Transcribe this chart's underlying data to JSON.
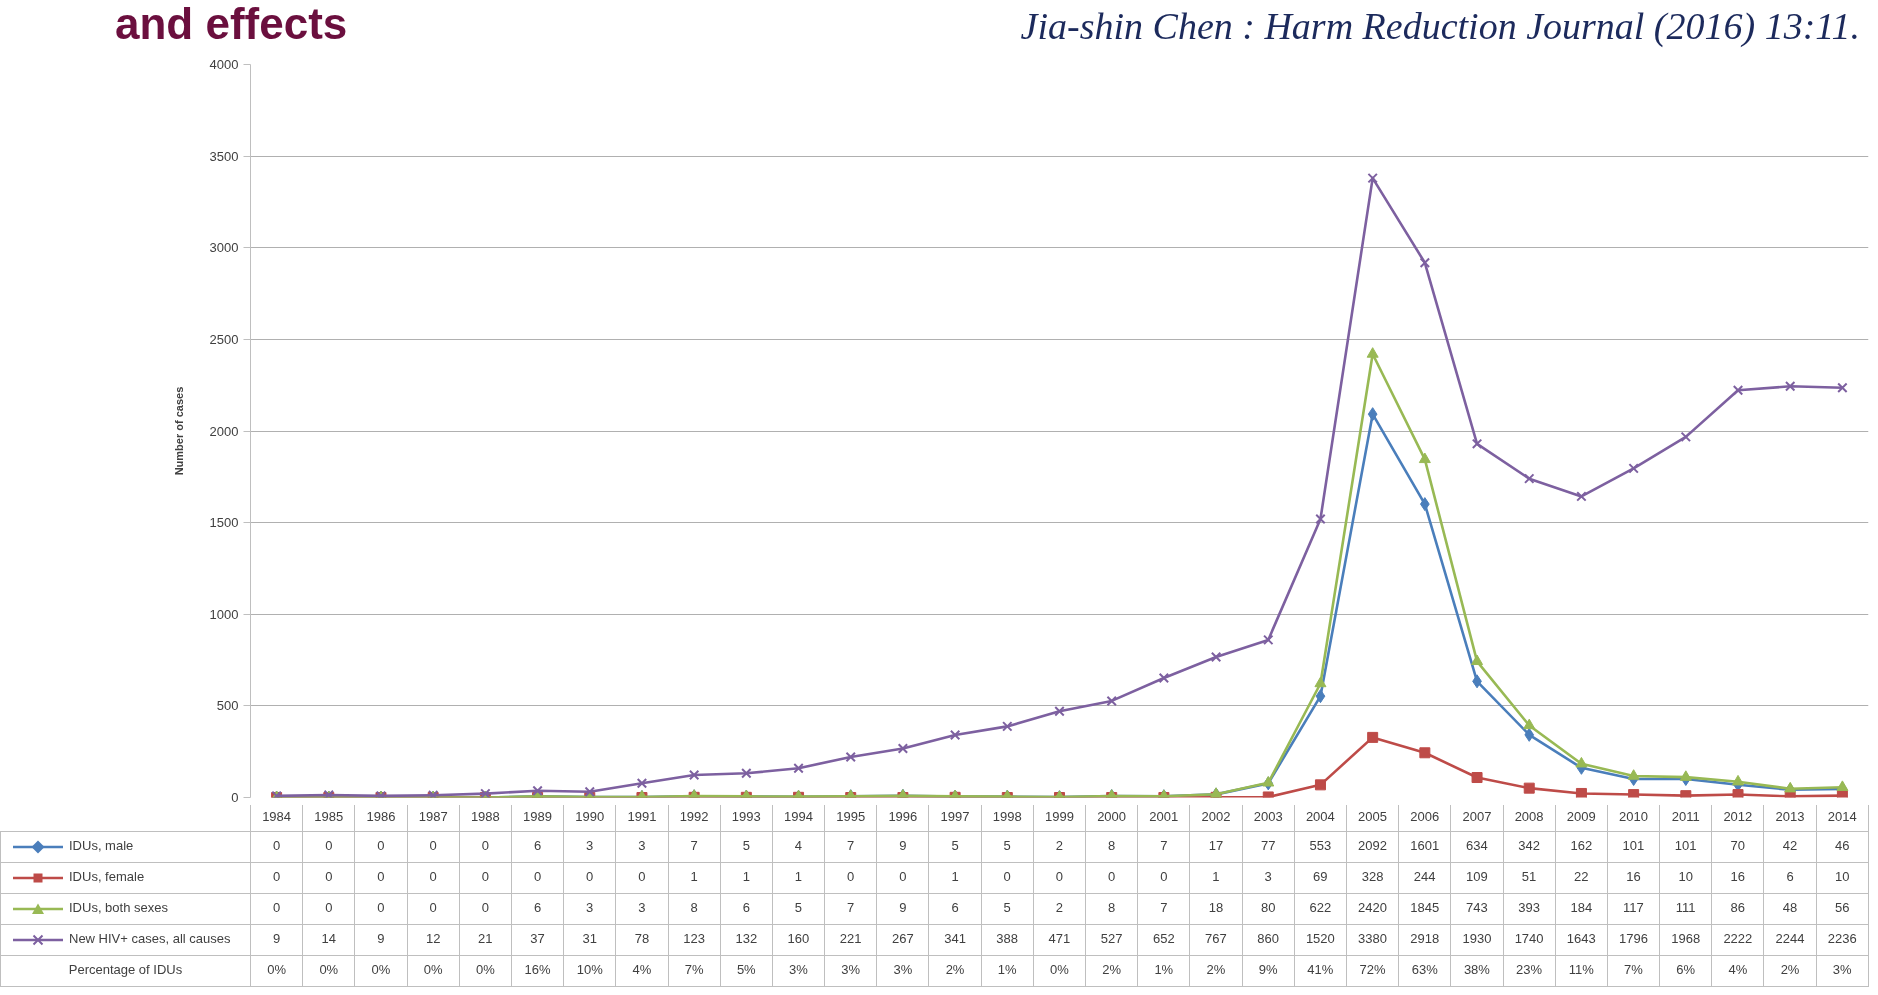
{
  "chart_data": {
    "type": "line",
    "title": "and effects",
    "subtitle": "Jia-shin Chen : Harm Reduction Journal (2016) 13:11.",
    "ylabel": "Number of cases",
    "categories": [
      "1984",
      "1985",
      "1986",
      "1987",
      "1988",
      "1989",
      "1990",
      "1991",
      "1992",
      "1993",
      "1994",
      "1995",
      "1996",
      "1997",
      "1998",
      "1999",
      "2000",
      "2001",
      "2002",
      "2003",
      "2004",
      "2005",
      "2006",
      "2007",
      "2008",
      "2009",
      "2010",
      "2011",
      "2012",
      "2013",
      "2014"
    ],
    "ylim": [
      0,
      4000
    ],
    "yticks": [
      0,
      500,
      1000,
      1500,
      2000,
      2500,
      3000,
      3500,
      4000
    ],
    "grid": "y",
    "legend": "bottom left",
    "data_labels": true,
    "series": [
      {
        "name": "IDUs, male",
        "color": "#4a7ebb",
        "marker": "diamond",
        "values": [
          0,
          0,
          0,
          0,
          0,
          6,
          3,
          3,
          7,
          5,
          4,
          7,
          9,
          5,
          5,
          2,
          8,
          7,
          17,
          77,
          553,
          2092,
          1601,
          634,
          342,
          162,
          101,
          101,
          70,
          42,
          46
        ]
      },
      {
        "name": "IDUs, female",
        "color": "#be4b48",
        "marker": "square",
        "values": [
          0,
          0,
          0,
          0,
          0,
          0,
          0,
          0,
          1,
          1,
          1,
          0,
          0,
          1,
          0,
          0,
          0,
          0,
          1,
          3,
          69,
          328,
          244,
          109,
          51,
          22,
          16,
          10,
          16,
          6,
          10
        ]
      },
      {
        "name": "IDUs, both sexes",
        "color": "#98b954",
        "marker": "triangle",
        "values": [
          0,
          0,
          0,
          0,
          0,
          6,
          3,
          3,
          8,
          6,
          5,
          7,
          9,
          6,
          5,
          2,
          8,
          7,
          18,
          80,
          622,
          2420,
          1845,
          743,
          393,
          184,
          117,
          111,
          86,
          48,
          56
        ]
      },
      {
        "name": "New HIV+ cases, all causes",
        "color": "#7d60a0",
        "marker": "cross",
        "values": [
          9,
          14,
          9,
          12,
          21,
          37,
          31,
          78,
          123,
          132,
          160,
          221,
          267,
          341,
          388,
          471,
          527,
          652,
          767,
          860,
          1520,
          3380,
          2918,
          1930,
          1740,
          1643,
          1796,
          1968,
          2222,
          2244,
          2236
        ]
      }
    ],
    "annotations": [
      "Percentage of IDUs",
      "0%",
      "0%",
      "0%",
      "0%",
      "0%",
      "16%",
      "10%",
      "4%",
      "7%",
      "5%",
      "3%",
      "3%",
      "3%",
      "2%",
      "1%",
      "0%",
      "2%",
      "1%",
      "2%",
      "9%",
      "41%",
      "72%",
      "63%",
      "38%",
      "23%",
      "11%",
      "7%",
      "6%",
      "4%",
      "2%",
      "3%"
    ]
  }
}
